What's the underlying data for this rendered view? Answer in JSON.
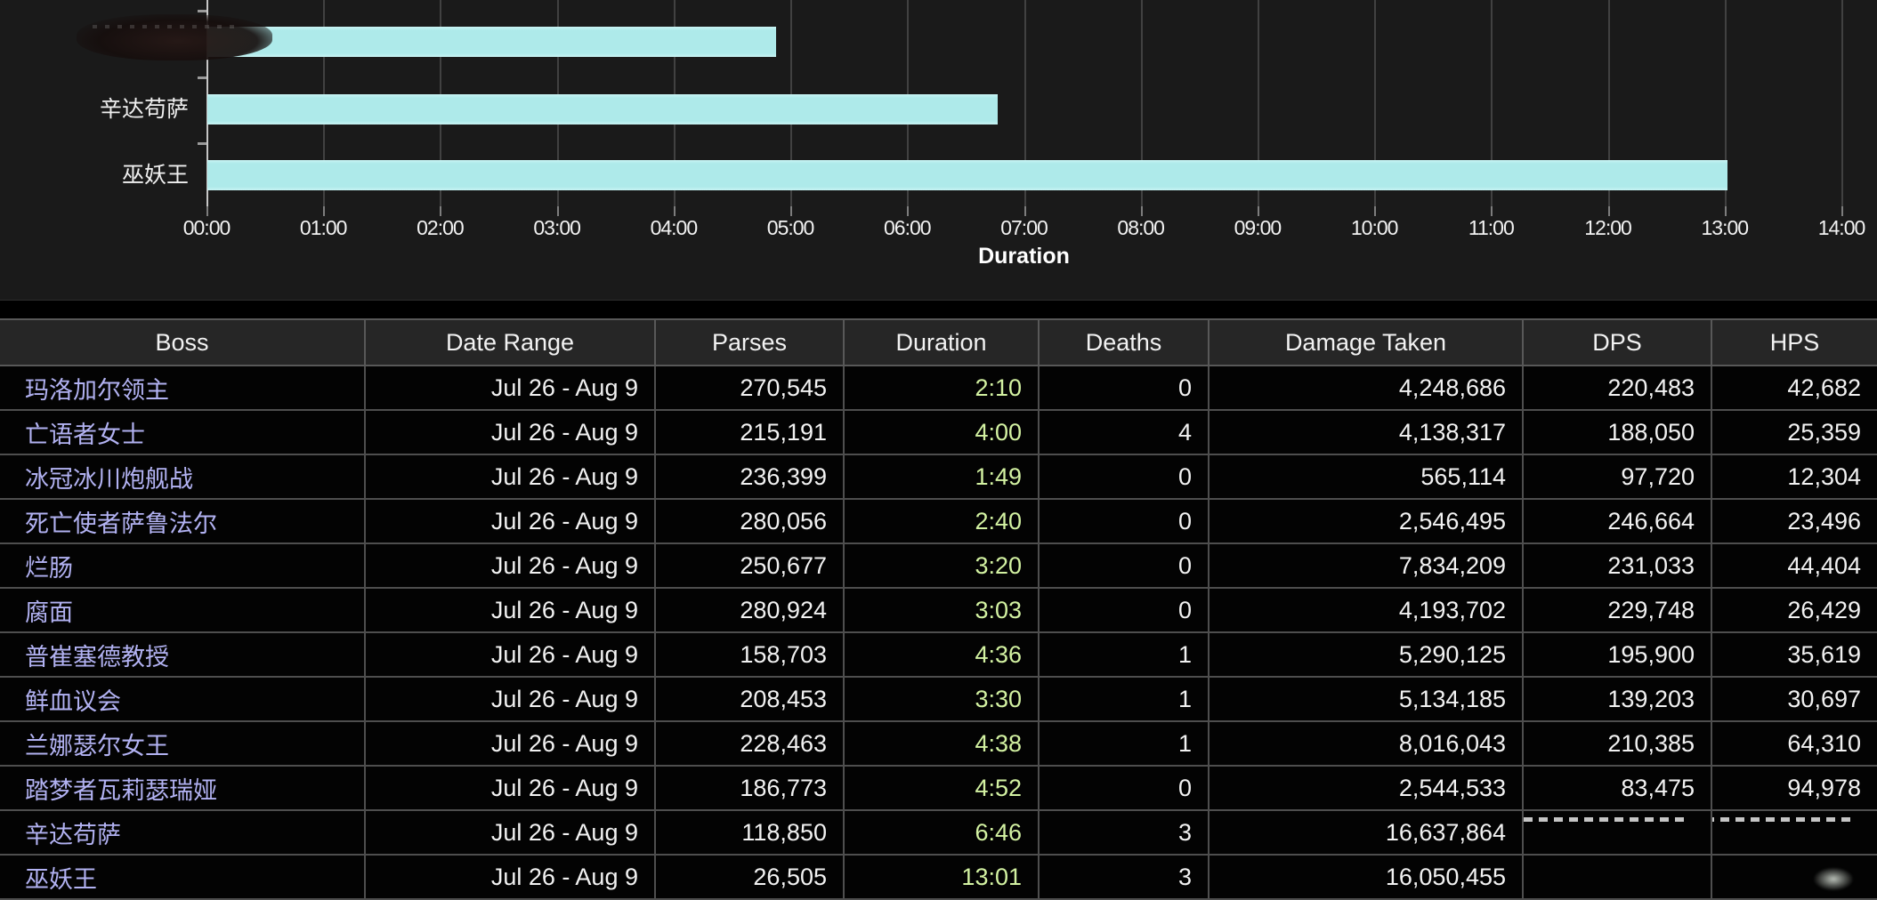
{
  "colors": {
    "page_background": "#000000",
    "chart_background": "#1a1a1a",
    "bar_color": "#b0ebeb",
    "boss_link": "#b2b2f2",
    "duration_text": "#d3f2a2",
    "value_text": "#f2f2f2",
    "header_background": "#262626",
    "grid_line": "#414141",
    "row_separator": "#4e4e4e"
  },
  "chart": {
    "axis_title": "Duration",
    "tick_labels": [
      "00:00",
      "01:00",
      "02:00",
      "03:00",
      "04:00",
      "05:00",
      "06:00",
      "07:00",
      "08:00",
      "09:00",
      "10:00",
      "11:00",
      "12:00",
      "13:00",
      "14:00"
    ],
    "categories": [
      {
        "label": "",
        "obscured": true,
        "minutes": 4.87
      },
      {
        "label": "辛达苟萨",
        "obscured": false,
        "minutes": 6.77
      },
      {
        "label": "巫妖王",
        "obscured": false,
        "minutes": 13.02
      }
    ]
  },
  "chart_data": {
    "type": "bar",
    "orientation": "horizontal",
    "title": "",
    "xlabel": "Duration",
    "ylabel": "",
    "categories": [
      "",
      "辛达苟萨",
      "巫妖王"
    ],
    "values_minutes": [
      4.87,
      6.77,
      13.02
    ],
    "x_ticks": [
      "00:00",
      "01:00",
      "02:00",
      "03:00",
      "04:00",
      "05:00",
      "06:00",
      "07:00",
      "08:00",
      "09:00",
      "10:00",
      "11:00",
      "12:00",
      "13:00",
      "14:00"
    ],
    "xlim_minutes": [
      0,
      14
    ],
    "grid": true,
    "legend": false,
    "bar_color": "#b0ebeb",
    "note": "first category label is scribbled out in the screenshot"
  },
  "table": {
    "columns": [
      "Boss",
      "Date Range",
      "Parses",
      "Duration",
      "Deaths",
      "Damage Taken",
      "DPS",
      "HPS"
    ],
    "rows": [
      {
        "boss": "玛洛加尔领主",
        "date_range": "Jul 26 - Aug 9",
        "parses": "270,545",
        "duration": "2:10",
        "deaths": "0",
        "damage_taken": "4,248,686",
        "dps": "220,483",
        "hps": "42,682"
      },
      {
        "boss": "亡语者女士",
        "date_range": "Jul 26 - Aug 9",
        "parses": "215,191",
        "duration": "4:00",
        "deaths": "4",
        "damage_taken": "4,138,317",
        "dps": "188,050",
        "hps": "25,359"
      },
      {
        "boss": "冰冠冰川炮舰战",
        "date_range": "Jul 26 - Aug 9",
        "parses": "236,399",
        "duration": "1:49",
        "deaths": "0",
        "damage_taken": "565,114",
        "dps": "97,720",
        "hps": "12,304"
      },
      {
        "boss": "死亡使者萨鲁法尔",
        "date_range": "Jul 26 - Aug 9",
        "parses": "280,056",
        "duration": "2:40",
        "deaths": "0",
        "damage_taken": "2,546,495",
        "dps": "246,664",
        "hps": "23,496"
      },
      {
        "boss": "烂肠",
        "date_range": "Jul 26 - Aug 9",
        "parses": "250,677",
        "duration": "3:20",
        "deaths": "0",
        "damage_taken": "7,834,209",
        "dps": "231,033",
        "hps": "44,404"
      },
      {
        "boss": "腐面",
        "date_range": "Jul 26 - Aug 9",
        "parses": "280,924",
        "duration": "3:03",
        "deaths": "0",
        "damage_taken": "4,193,702",
        "dps": "229,748",
        "hps": "26,429"
      },
      {
        "boss": "普崔塞德教授",
        "date_range": "Jul 26 - Aug 9",
        "parses": "158,703",
        "duration": "4:36",
        "deaths": "1",
        "damage_taken": "5,290,125",
        "dps": "195,900",
        "hps": "35,619"
      },
      {
        "boss": "鲜血议会",
        "date_range": "Jul 26 - Aug 9",
        "parses": "208,453",
        "duration": "3:30",
        "deaths": "1",
        "damage_taken": "5,134,185",
        "dps": "139,203",
        "hps": "30,697"
      },
      {
        "boss": "兰娜瑟尔女王",
        "date_range": "Jul 26 - Aug 9",
        "parses": "228,463",
        "duration": "4:38",
        "deaths": "1",
        "damage_taken": "8,016,043",
        "dps": "210,385",
        "hps": "64,310"
      },
      {
        "boss": "踏梦者瓦莉瑟瑞娅",
        "date_range": "Jul 26 - Aug 9",
        "parses": "186,773",
        "duration": "4:52",
        "deaths": "0",
        "damage_taken": "2,544,533",
        "dps": "83,475",
        "hps": "94,978"
      },
      {
        "boss": "辛达苟萨",
        "date_range": "Jul 26 - Aug 9",
        "parses": "118,850",
        "duration": "6:46",
        "deaths": "3",
        "damage_taken": "16,637,864",
        "dps": "",
        "hps": "",
        "dps_obscured": true,
        "hps_obscured": true
      },
      {
        "boss": "巫妖王",
        "date_range": "Jul 26 - Aug 9",
        "parses": "26,505",
        "duration": "13:01",
        "deaths": "3",
        "damage_taken": "16,050,455",
        "dps": "",
        "hps": "",
        "hps_cursor": true
      }
    ]
  }
}
